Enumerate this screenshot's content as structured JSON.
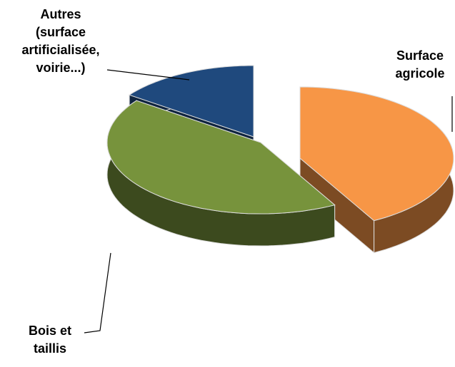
{
  "chart_data": {
    "type": "pie",
    "categories": [
      "Surface\nagricole",
      "Bois et\ntaillis",
      "Autres\n(surface\nartificialisée,\nvoirie...)"
    ],
    "values": [
      42,
      43,
      15
    ],
    "colors": [
      "#f79646",
      "#77933c",
      "#1f497d"
    ]
  }
}
